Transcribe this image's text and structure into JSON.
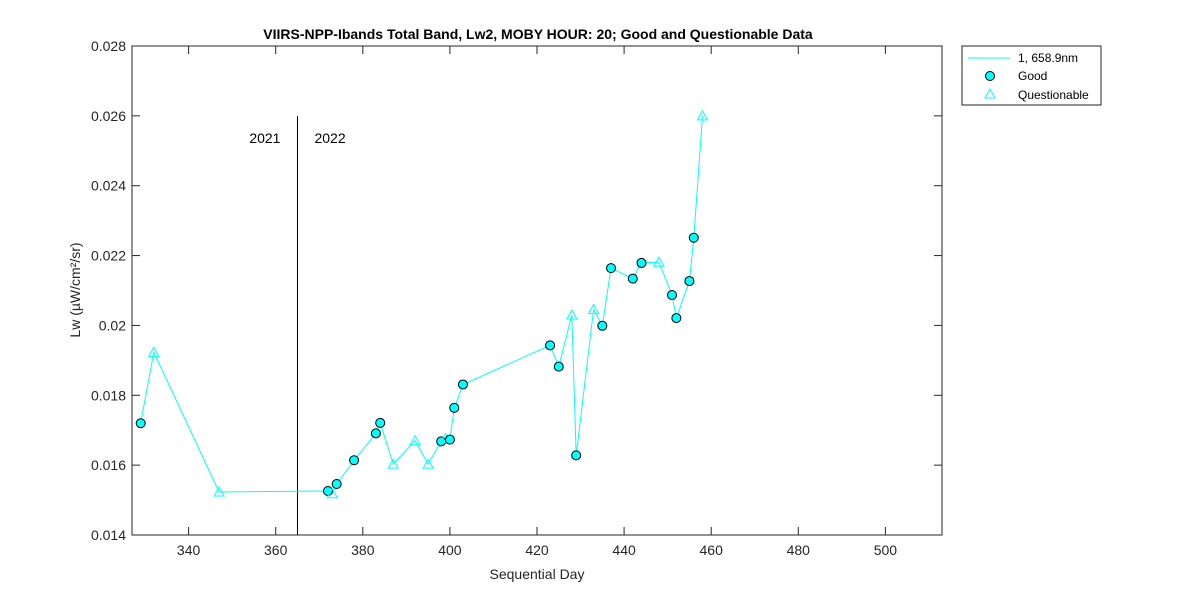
{
  "chart_data": {
    "type": "line",
    "title": "VIIRS-NPP-Ibands Total Band,  Lw2, MOBY HOUR: 20;  Good and Questionable Data",
    "xlabel": "Sequential Day",
    "ylabel": "Lw (µW/cm²/sr)",
    "xlim": [
      327,
      513
    ],
    "ylim": [
      0.014,
      0.028
    ],
    "xticks": [
      340,
      360,
      380,
      400,
      420,
      440,
      460,
      480,
      500
    ],
    "xtick_labels": [
      "340",
      "360",
      "380",
      "400",
      "420",
      "440",
      "460",
      "480",
      "500"
    ],
    "yticks": [
      0.014,
      0.016,
      0.018,
      0.02,
      0.022,
      0.024,
      0.026,
      0.028
    ],
    "ytick_labels": [
      "0.014",
      "0.016",
      "0.018",
      "0.02",
      "0.022",
      "0.024",
      "0.026",
      "0.028"
    ],
    "grid": false,
    "legend_position": "outside-top-right",
    "colors": {
      "series": "#00ffff",
      "marker_edge_good": "#000000",
      "divider": "#000000"
    },
    "year_divider": {
      "x": 365,
      "y_top": 0.026,
      "left_label": "2021",
      "right_label": "2022"
    },
    "series": [
      {
        "name": "1, 658.9nm",
        "points": [
          {
            "x": 329,
            "y": 0.0172,
            "q": "good"
          },
          {
            "x": 332,
            "y": 0.01923,
            "q": "questionable"
          },
          {
            "x": 347,
            "y": 0.01523,
            "q": "questionable"
          },
          {
            "x": 372,
            "y": 0.01526,
            "q": "good"
          },
          {
            "x": 373,
            "y": 0.01518,
            "q": "questionable"
          },
          {
            "x": 374,
            "y": 0.01546,
            "q": "good"
          },
          {
            "x": 378,
            "y": 0.01614,
            "q": "good"
          },
          {
            "x": 383,
            "y": 0.01691,
            "q": "good"
          },
          {
            "x": 384,
            "y": 0.01721,
            "q": "good"
          },
          {
            "x": 387,
            "y": 0.01603,
            "q": "questionable"
          },
          {
            "x": 392,
            "y": 0.0167,
            "q": "questionable"
          },
          {
            "x": 395,
            "y": 0.01603,
            "q": "questionable"
          },
          {
            "x": 398,
            "y": 0.01668,
            "q": "good"
          },
          {
            "x": 399,
            "y": 0.01676,
            "q": "questionable"
          },
          {
            "x": 400,
            "y": 0.01673,
            "q": "good"
          },
          {
            "x": 401,
            "y": 0.01764,
            "q": "good"
          },
          {
            "x": 403,
            "y": 0.01831,
            "q": "good"
          },
          {
            "x": 423,
            "y": 0.01943,
            "q": "good"
          },
          {
            "x": 425,
            "y": 0.01882,
            "q": "good"
          },
          {
            "x": 428,
            "y": 0.0203,
            "q": "questionable"
          },
          {
            "x": 429,
            "y": 0.01628,
            "q": "good"
          },
          {
            "x": 433,
            "y": 0.02046,
            "q": "questionable"
          },
          {
            "x": 435,
            "y": 0.01999,
            "q": "good"
          },
          {
            "x": 437,
            "y": 0.02164,
            "q": "good"
          },
          {
            "x": 442,
            "y": 0.02134,
            "q": "good"
          },
          {
            "x": 444,
            "y": 0.02179,
            "q": "good"
          },
          {
            "x": 448,
            "y": 0.02181,
            "q": "questionable"
          },
          {
            "x": 451,
            "y": 0.02087,
            "q": "good"
          },
          {
            "x": 452,
            "y": 0.02021,
            "q": "good"
          },
          {
            "x": 455,
            "y": 0.02127,
            "q": "good"
          },
          {
            "x": 456,
            "y": 0.02251,
            "q": "good"
          },
          {
            "x": 458,
            "y": 0.026,
            "q": "questionable"
          }
        ]
      }
    ],
    "legend": [
      {
        "label": "1, 658.9nm",
        "symbol": "line"
      },
      {
        "label": "Good",
        "symbol": "filled-circle"
      },
      {
        "label": "Questionable",
        "symbol": "open-triangle"
      }
    ]
  }
}
